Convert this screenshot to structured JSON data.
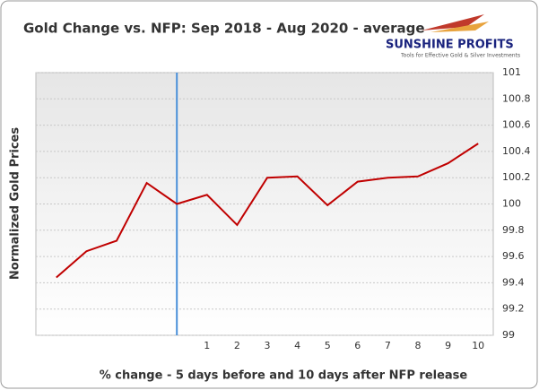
{
  "chart_data": {
    "type": "line",
    "title": "Gold Change vs. NFP: Sep 2018 - Aug 2020 - average",
    "x_label": "% change - 5 days before and 10 days after NFP release",
    "y_label": "Normalized Gold Prices",
    "categories": [
      null,
      null,
      null,
      null,
      null,
      "1",
      "2",
      "3",
      "4",
      "5",
      "6",
      "7",
      "8",
      "9",
      "10"
    ],
    "series": [
      {
        "name": "Gold",
        "color": "#c00000",
        "values": [
          99.44,
          99.64,
          99.72,
          100.16,
          100.0,
          100.07,
          99.84,
          100.2,
          100.21,
          99.99,
          100.17,
          100.2,
          100.21,
          100.31,
          100.46
        ]
      }
    ],
    "ylim": [
      99,
      101
    ],
    "yticks": [
      99,
      99.2,
      99.4,
      99.6,
      99.8,
      100,
      100.2,
      100.4,
      100.6,
      100.8,
      101
    ],
    "grid": true,
    "vline": {
      "category_index": 4,
      "color": "#4a90d9"
    }
  },
  "logo": {
    "name": "SUNSHINE PROFITS",
    "tagline": "Tools for Effective Gold & Silver Investments"
  }
}
